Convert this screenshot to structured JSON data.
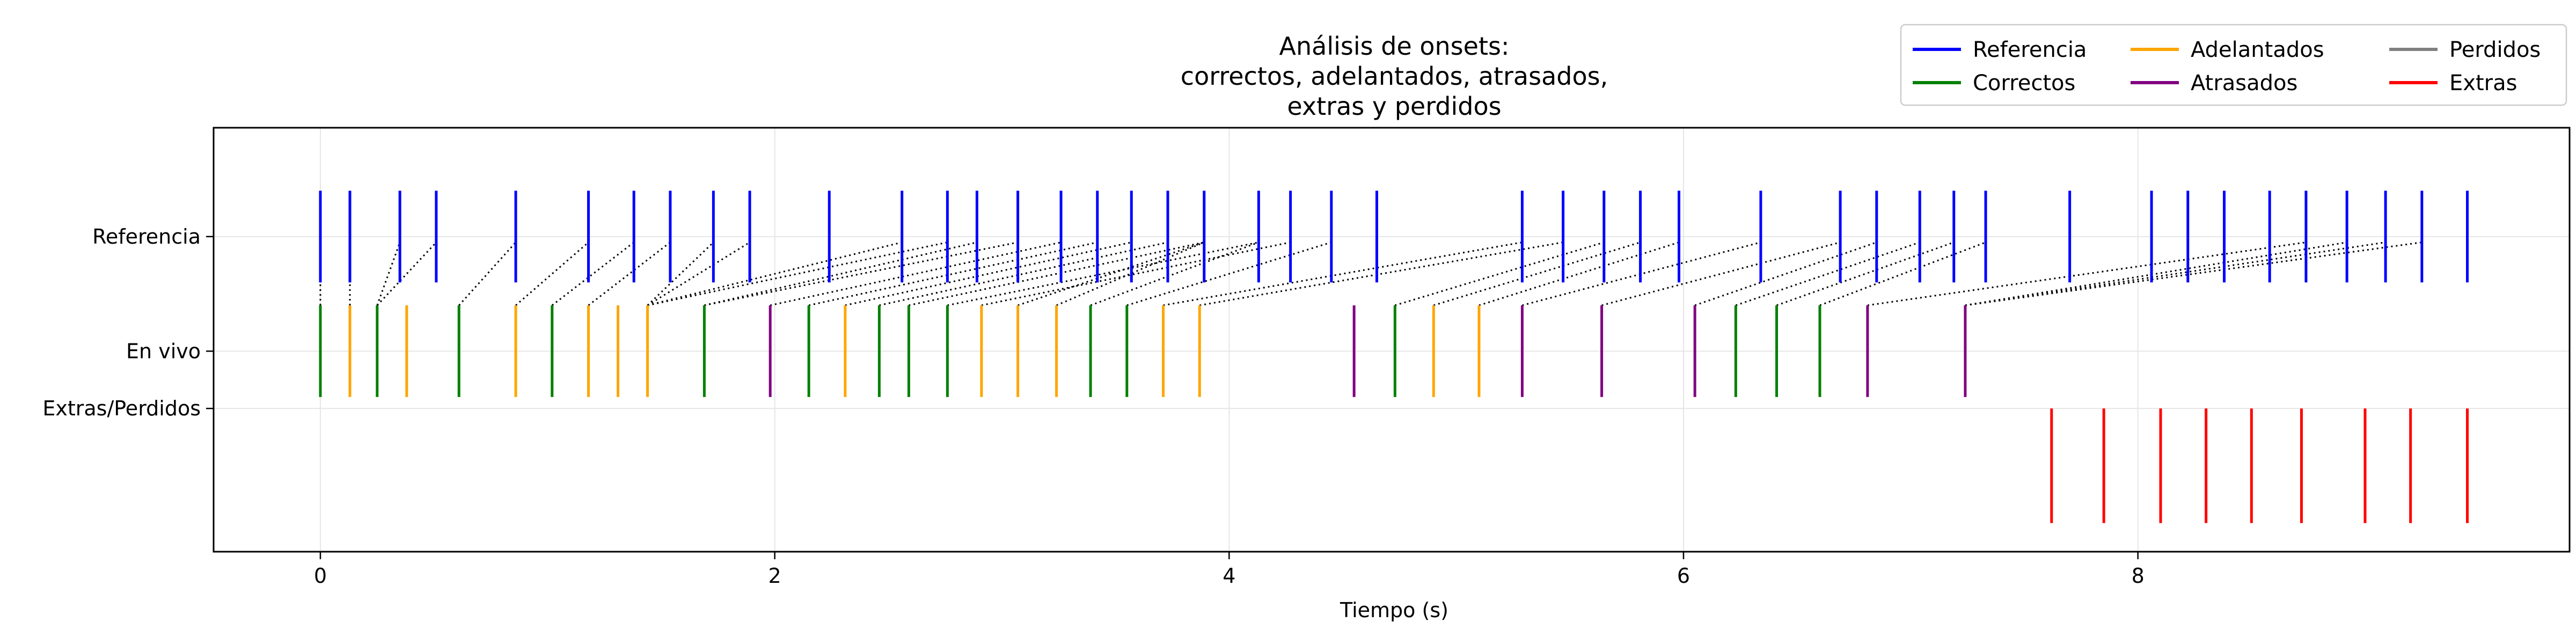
{
  "chart_data": {
    "type": "event-raster",
    "title_lines": [
      "Análisis de onsets:",
      "correctos, adelantados, atrasados,",
      "extras y perdidos"
    ],
    "xlabel": "Tiempo (s)",
    "xlim": [
      -0.47,
      9.9
    ],
    "xticks": [
      0,
      2,
      4,
      6,
      8
    ],
    "ylim": [
      -2.75,
      0.95
    ],
    "yticks": [
      {
        "label": "Referencia",
        "y": 0
      },
      {
        "label": "En vivo",
        "y": -1
      },
      {
        "label": "Extras/Perdidos",
        "y": -1.5
      }
    ],
    "grid": true,
    "legend": {
      "placement": "top-right",
      "columns": 3,
      "entries": [
        {
          "name": "Referencia",
          "color": "#0000ff"
        },
        {
          "name": "Correctos",
          "color": "#008000"
        },
        {
          "name": "Adelantados",
          "color": "#ffa500"
        },
        {
          "name": "Atrasados",
          "color": "#800080"
        },
        {
          "name": "Perdidos",
          "color": "#808080"
        },
        {
          "name": "Extras",
          "color": "#ff0000"
        }
      ]
    },
    "series": [
      {
        "name": "Referencia",
        "color": "#0000ff",
        "y_range": [
          -0.4,
          0.4
        ],
        "x": [
          0,
          0.13,
          0.35,
          0.51,
          0.86,
          1.18,
          1.38,
          1.54,
          1.73,
          1.89,
          2.24,
          2.56,
          2.76,
          2.89,
          3.07,
          3.26,
          3.42,
          3.57,
          3.73,
          3.89,
          4.13,
          4.27,
          4.45,
          4.65,
          5.29,
          5.47,
          5.65,
          5.81,
          5.98,
          6.34,
          6.69,
          6.85,
          7.04,
          7.19,
          7.33,
          7.7,
          8.06,
          8.22,
          8.38,
          8.58,
          8.74,
          8.92,
          9.09,
          9.25,
          9.45
        ]
      },
      {
        "name": "Correctos",
        "color": "#008000",
        "y_range": [
          -1.4,
          -0.6
        ],
        "x": [
          0,
          0.25,
          0.61,
          1.02,
          1.69,
          2.15,
          2.46,
          2.59,
          2.76,
          3.39,
          3.55,
          4.73,
          6.23,
          6.41,
          6.6
        ]
      },
      {
        "name": "Adelantados",
        "color": "#ffa500",
        "y_range": [
          -1.4,
          -0.6
        ],
        "x": [
          0.13,
          0.38,
          0.86,
          1.18,
          1.31,
          1.44,
          2.31,
          2.91,
          3.07,
          3.24,
          3.71,
          3.87,
          4.9,
          5.1
        ]
      },
      {
        "name": "Atrasados",
        "color": "#800080",
        "y_range": [
          -1.4,
          -0.6
        ],
        "x": [
          1.98,
          4.55,
          5.29,
          5.64,
          6.05,
          6.81,
          7.24
        ]
      },
      {
        "name": "Extras",
        "color": "#ff0000",
        "y_range": [
          -1.5,
          -2.5
        ],
        "x": [
          7.62,
          7.85,
          8.1,
          8.3,
          8.5,
          8.72,
          9.0,
          9.2,
          9.45
        ]
      }
    ],
    "matches": [
      [
        0,
        0
      ],
      [
        0.13,
        0.13
      ],
      [
        0.25,
        0.35
      ],
      [
        0.25,
        0.51
      ],
      [
        0.61,
        0.86
      ],
      [
        0.86,
        1.18
      ],
      [
        1.02,
        1.38
      ],
      [
        1.18,
        1.54
      ],
      [
        1.44,
        1.73
      ],
      [
        1.44,
        1.89
      ],
      [
        1.44,
        2.56
      ],
      [
        1.44,
        2.76
      ],
      [
        1.69,
        2.89
      ],
      [
        1.69,
        3.07
      ],
      [
        1.98,
        3.26
      ],
      [
        2.15,
        3.42
      ],
      [
        2.31,
        3.57
      ],
      [
        2.46,
        3.73
      ],
      [
        2.59,
        3.89
      ],
      [
        2.76,
        4.13
      ],
      [
        2.91,
        4.27
      ],
      [
        3.07,
        3.89
      ],
      [
        3.24,
        3.89
      ],
      [
        3.39,
        4.13
      ],
      [
        3.55,
        4.45
      ],
      [
        3.71,
        5.29
      ],
      [
        3.87,
        5.47
      ],
      [
        4.73,
        5.65
      ],
      [
        4.9,
        5.81
      ],
      [
        5.1,
        5.98
      ],
      [
        5.29,
        6.34
      ],
      [
        5.64,
        6.69
      ],
      [
        6.05,
        6.85
      ],
      [
        6.23,
        7.04
      ],
      [
        6.41,
        7.19
      ],
      [
        6.6,
        7.33
      ],
      [
        6.81,
        8.74
      ],
      [
        7.24,
        8.92
      ],
      [
        7.24,
        9.09
      ],
      [
        7.24,
        9.25
      ]
    ]
  }
}
